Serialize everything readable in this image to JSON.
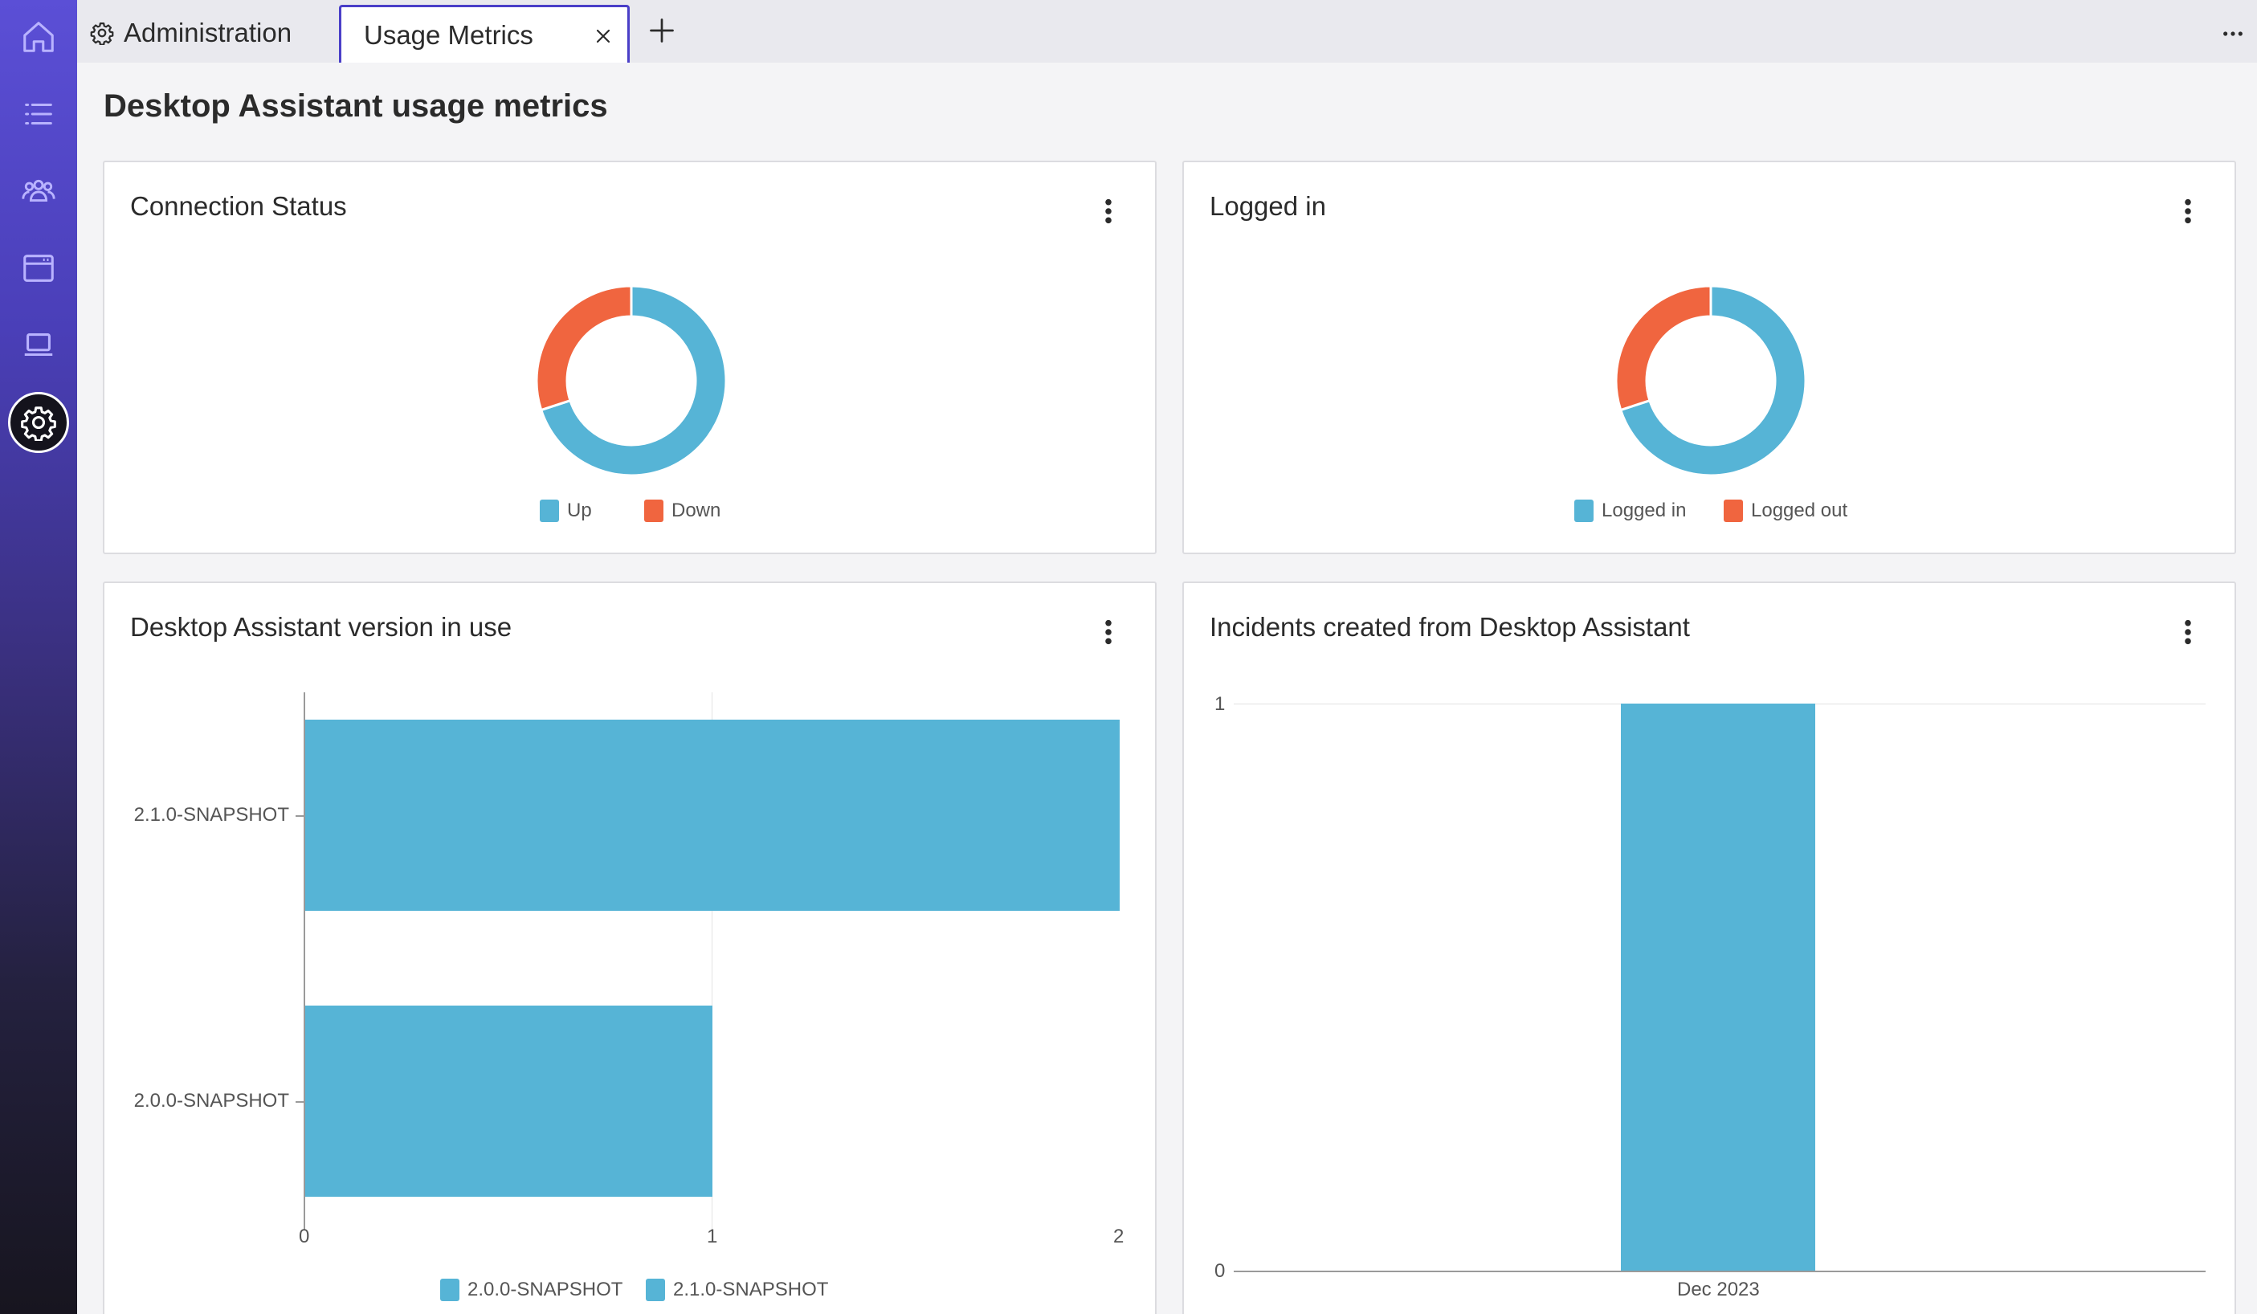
{
  "tabs": {
    "admin_label": "Administration",
    "active_label": "Usage Metrics"
  },
  "page": {
    "title": "Desktop Assistant usage metrics"
  },
  "colors": {
    "primary_series": "#56b4d6",
    "secondary_series": "#f0653f",
    "accent": "#4a3fc8"
  },
  "sidebar": {
    "items": [
      {
        "icon": "home-icon"
      },
      {
        "icon": "list-icon"
      },
      {
        "icon": "people-icon"
      },
      {
        "icon": "browser-window-icon"
      },
      {
        "icon": "laptop-icon"
      },
      {
        "icon": "gear-icon",
        "active": true
      }
    ]
  },
  "chart_data": [
    {
      "type": "pie",
      "title": "Connection Status",
      "labels": [
        "Up",
        "Down"
      ],
      "values": [
        70,
        30
      ],
      "colors": [
        "#56b4d6",
        "#f0653f"
      ],
      "legend": "bottom"
    },
    {
      "type": "pie",
      "title": "Logged in",
      "labels": [
        "Logged in",
        "Logged out"
      ],
      "values": [
        70,
        30
      ],
      "colors": [
        "#56b4d6",
        "#f0653f"
      ],
      "legend": "bottom"
    },
    {
      "type": "bar",
      "orientation": "horizontal",
      "title": "Desktop Assistant version in use",
      "categories": [
        "2.1.0-SNAPSHOT",
        "2.0.0-SNAPSHOT"
      ],
      "values": [
        2,
        1
      ],
      "xlim": [
        0,
        2
      ],
      "x_ticks": [
        "0",
        "1",
        "2"
      ],
      "legend_labels": [
        "2.0.0-SNAPSHOT",
        "2.1.0-SNAPSHOT"
      ],
      "legend": "bottom",
      "grid": true
    },
    {
      "type": "bar",
      "title": "Incidents created from Desktop Assistant",
      "categories": [
        "Dec 2023"
      ],
      "values": [
        1
      ],
      "ylim": [
        0,
        1
      ],
      "y_ticks": [
        "0",
        "1"
      ],
      "grid": true
    }
  ]
}
